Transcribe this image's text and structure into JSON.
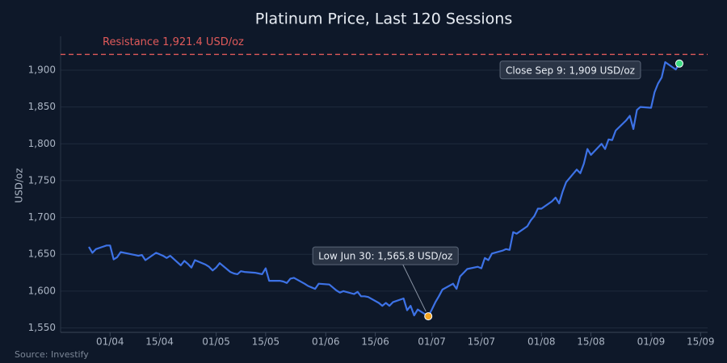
{
  "chart_data": {
    "type": "line",
    "title": "Platinum Price, Last 120 Sessions",
    "y_label": "USD/oz",
    "source": "Source: Investify",
    "x": [
      "26/03",
      "27/03",
      "28/03",
      "31/03",
      "01/04",
      "02/04",
      "03/04",
      "04/04",
      "07/04",
      "08/04",
      "09/04",
      "10/04",
      "11/04",
      "14/04",
      "15/04",
      "16/04",
      "17/04",
      "18/04",
      "21/04",
      "22/04",
      "23/04",
      "24/04",
      "25/04",
      "28/04",
      "29/04",
      "30/04",
      "01/05",
      "02/05",
      "05/05",
      "06/05",
      "07/05",
      "08/05",
      "09/05",
      "12/05",
      "13/05",
      "14/05",
      "15/05",
      "16/05",
      "19/05",
      "20/05",
      "21/05",
      "22/05",
      "23/05",
      "26/05",
      "27/05",
      "28/05",
      "29/05",
      "30/05",
      "02/06",
      "03/06",
      "04/06",
      "05/06",
      "06/06",
      "09/06",
      "10/06",
      "11/06",
      "12/06",
      "13/06",
      "16/06",
      "17/06",
      "18/06",
      "19/06",
      "20/06",
      "23/06",
      "24/06",
      "25/06",
      "26/06",
      "27/06",
      "30/06",
      "01/07",
      "02/07",
      "03/07",
      "04/07",
      "07/07",
      "08/07",
      "09/07",
      "10/07",
      "11/07",
      "14/07",
      "15/07",
      "16/07",
      "17/07",
      "18/07",
      "21/07",
      "22/07",
      "23/07",
      "24/07",
      "25/07",
      "28/07",
      "29/07",
      "30/07",
      "31/07",
      "01/08",
      "04/08",
      "05/08",
      "06/08",
      "07/08",
      "08/08",
      "11/08",
      "12/08",
      "13/08",
      "14/08",
      "15/08",
      "18/08",
      "19/08",
      "20/08",
      "21/08",
      "22/08",
      "25/08",
      "26/08",
      "27/08",
      "28/08",
      "29/08",
      "01/09",
      "02/09",
      "03/09",
      "04/09",
      "05/09",
      "08/09",
      "09/09"
    ],
    "series": [
      {
        "name": "Platinum",
        "color": "#3d72e6",
        "values": [
          1660,
          1652,
          1657,
          1662,
          1662,
          1643,
          1646,
          1653,
          1650,
          1649,
          1648,
          1649,
          1642,
          1652,
          1650,
          1648,
          1645,
          1648,
          1635,
          1641,
          1637,
          1632,
          1642,
          1636,
          1633,
          1628,
          1632,
          1638,
          1626,
          1624,
          1623,
          1627,
          1626,
          1625,
          1624,
          1623,
          1631,
          1614,
          1614,
          1613,
          1611,
          1617,
          1618,
          1610,
          1607,
          1605,
          1603,
          1610,
          1609,
          1605,
          1601,
          1598,
          1600,
          1596,
          1599,
          1593,
          1593,
          1592,
          1584,
          1580,
          1584,
          1580,
          1585,
          1590,
          1574,
          1580,
          1567,
          1575,
          1565.8,
          1575,
          1585,
          1593,
          1602,
          1610,
          1603,
          1620,
          1625,
          1630,
          1633,
          1631,
          1645,
          1642,
          1651,
          1655,
          1657,
          1656,
          1680,
          1678,
          1688,
          1696,
          1702,
          1712,
          1712,
          1722,
          1727,
          1719,
          1735,
          1748,
          1765,
          1760,
          1773,
          1793,
          1785,
          1800,
          1793,
          1806,
          1805,
          1818,
          1832,
          1838,
          1820,
          1846,
          1850,
          1849,
          1870,
          1882,
          1890,
          1911,
          1901,
          1909
        ]
      }
    ],
    "xlim": [
      "18/03",
      "17/09"
    ],
    "xticks": [
      "01/04",
      "15/04",
      "01/05",
      "15/05",
      "01/06",
      "15/06",
      "01/07",
      "15/07",
      "01/08",
      "15/08",
      "01/09",
      "15/09"
    ],
    "ylim": [
      1544,
      1946
    ],
    "yticks": [
      {
        "value": 1550,
        "label": "1,550"
      },
      {
        "value": 1600,
        "label": "1,600"
      },
      {
        "value": 1650,
        "label": "1,650"
      },
      {
        "value": 1700,
        "label": "1,700"
      },
      {
        "value": 1750,
        "label": "1,750"
      },
      {
        "value": 1800,
        "label": "1,800"
      },
      {
        "value": 1850,
        "label": "1,850"
      },
      {
        "value": 1900,
        "label": "1,900"
      }
    ],
    "grid": true,
    "resistance": {
      "value": 1921.4,
      "label": "Resistance 1,921.4 USD/oz",
      "color": "#e05a5a"
    },
    "annotations": [
      {
        "text": "Low Jun 30: 1,565.8 USD/oz",
        "index": 68,
        "color": "#f5a623"
      },
      {
        "text": "Close Sep 9: 1,909 USD/oz",
        "index": 119,
        "color": "#3ddc84"
      }
    ]
  }
}
